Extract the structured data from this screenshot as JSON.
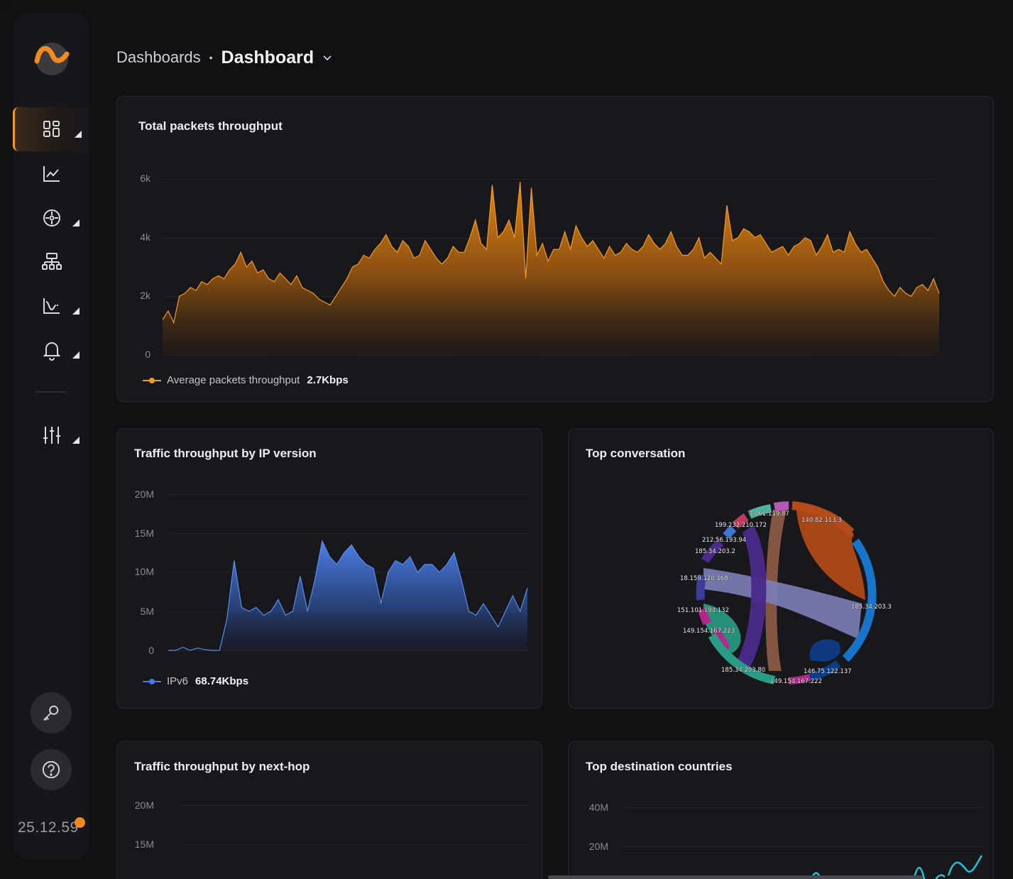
{
  "breadcrumb": {
    "parent": "Dashboards",
    "separator": "•",
    "current": "Dashboard"
  },
  "sidebar": {
    "items": [
      {
        "icon": "dashboard-grid-icon",
        "active": true,
        "has_submenu": true
      },
      {
        "icon": "line-chart-icon",
        "active": false,
        "has_submenu": false
      },
      {
        "icon": "network-hub-icon",
        "active": false,
        "has_submenu": true
      },
      {
        "icon": "sitemap-icon",
        "active": false,
        "has_submenu": false
      },
      {
        "icon": "analytics-curve-icon",
        "active": false,
        "has_submenu": true
      },
      {
        "icon": "bell-icon",
        "active": false,
        "has_submenu": true
      },
      {
        "icon": "sliders-icon",
        "active": false,
        "has_submenu": true
      }
    ],
    "bottom_buttons": [
      "key-icon",
      "help-icon"
    ],
    "version": "25.12.59"
  },
  "panels": {
    "packets": {
      "title": "Total packets throughput",
      "legend_name": "Average packets throughput",
      "legend_value": "2.7Kbps",
      "color": "#f39a1f"
    },
    "ipversion": {
      "title": "Traffic throughput by IP version",
      "legend_name": "IPv6",
      "legend_value": "68.74Kbps",
      "color": "#4a7be0"
    },
    "conversation": {
      "title": "Top conversation"
    },
    "nexthop": {
      "title": "Traffic throughput by next-hop"
    },
    "countries": {
      "title": "Top destination countries"
    }
  },
  "chart_data": [
    {
      "type": "area",
      "title": "Total packets throughput",
      "yticks": [
        "6k",
        "4k",
        "2k",
        "0"
      ],
      "ylim": [
        0,
        6000
      ],
      "series": [
        {
          "name": "Average packets throughput",
          "values": [
            1200,
            1500,
            1100,
            2000,
            2100,
            2300,
            2200,
            2500,
            2400,
            2600,
            2700,
            2600,
            2900,
            3100,
            3500,
            3000,
            3200,
            2800,
            2900,
            2600,
            2500,
            2800,
            2600,
            2400,
            2700,
            2300,
            2200,
            2100,
            1900,
            1800,
            1700,
            2000,
            2300,
            2600,
            3000,
            3100,
            3400,
            3300,
            3600,
            3800,
            4100,
            3700,
            3500,
            3900,
            3700,
            3300,
            3400,
            3900,
            3600,
            3300,
            3100,
            3300,
            3700,
            3500,
            3500,
            4000,
            4600,
            3800,
            3600,
            5800,
            4000,
            4200,
            4600,
            4000,
            5900,
            2600,
            5700,
            3400,
            3800,
            3200,
            3600,
            3600,
            4200,
            3600,
            4400,
            4000,
            3700,
            3900,
            3600,
            3300,
            3700,
            3400,
            3500,
            3800,
            3600,
            3500,
            3700,
            4100,
            3800,
            3600,
            3800,
            4200,
            3700,
            3400,
            3400,
            3600,
            4000,
            3300,
            3500,
            3300,
            3100,
            5100,
            3900,
            4000,
            4300,
            4200,
            4000,
            4100,
            3800,
            3500,
            3600,
            3700,
            3400,
            3700,
            3800,
            4000,
            3900,
            3400,
            3700,
            4100,
            3500,
            3600,
            3500,
            4200,
            3800,
            3500,
            3600,
            3300,
            3000,
            2500,
            2200,
            2000,
            2300,
            2100,
            2000,
            2300,
            2400,
            2200,
            2600,
            2100
          ]
        }
      ]
    },
    {
      "type": "area",
      "title": "Traffic throughput by IP version",
      "yticks": [
        "20M",
        "15M",
        "10M",
        "5M",
        "0"
      ],
      "ylim": [
        0,
        20000000
      ],
      "series": [
        {
          "name": "IPv6",
          "values": [
            0,
            0,
            400000,
            0,
            300000,
            100000,
            0,
            0,
            4000000,
            11500000,
            5500000,
            5000000,
            5500000,
            4500000,
            5000000,
            6500000,
            4500000,
            5000000,
            9500000,
            5000000,
            9000000,
            14000000,
            12000000,
            11000000,
            12500000,
            13500000,
            12000000,
            11000000,
            10500000,
            6000000,
            10000000,
            11500000,
            11000000,
            12000000,
            10000000,
            11000000,
            11000000,
            10000000,
            11000000,
            12500000,
            9000000,
            5000000,
            4500000,
            6000000,
            4500000,
            3000000,
            5000000,
            7000000,
            5000000,
            8000000
          ]
        }
      ]
    },
    {
      "type": "chord",
      "title": "Top conversation",
      "nodes": [
        "3.161.119.87",
        "140.82.113.3",
        "185.34.203.3",
        "146.75.122.137",
        "149.154.167.222",
        "185.34.203.80",
        "149.154.167.223",
        "151.101.194.132",
        "18.159.120.168",
        "185.34.203.2",
        "212.56.193.94",
        "199.232.210.172"
      ]
    },
    {
      "type": "line",
      "title": "Traffic throughput by next-hop",
      "yticks": [
        "20M",
        "15M"
      ]
    },
    {
      "type": "line",
      "title": "Top destination countries",
      "yticks": [
        "40M",
        "20M"
      ]
    }
  ]
}
